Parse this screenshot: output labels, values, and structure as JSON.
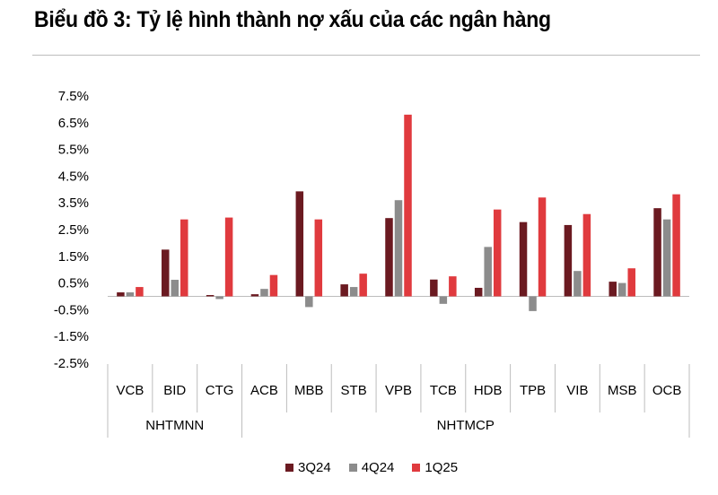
{
  "title": "Biểu đồ 3: Tỷ lệ hình thành nợ xấu của các ngân hàng",
  "colors": {
    "3Q24": "#6b1a21",
    "4Q24": "#8c8c8c",
    "1Q25": "#e03a3e"
  },
  "chart_data": {
    "type": "bar",
    "ylim": [
      -2.5,
      7.5
    ],
    "yticks": [
      "7.5%",
      "6.5%",
      "5.5%",
      "4.5%",
      "3.5%",
      "2.5%",
      "1.5%",
      "0.5%",
      "-0.5%",
      "-1.5%",
      "-2.5%"
    ],
    "grid": false,
    "legend_position": "bottom",
    "categories": [
      "VCB",
      "BID",
      "CTG",
      "ACB",
      "MBB",
      "STB",
      "VPB",
      "TCB",
      "HDB",
      "TPB",
      "VIB",
      "MSB",
      "OCB"
    ],
    "groups": [
      {
        "label": "NHTMNN",
        "categories": [
          "VCB",
          "BID",
          "CTG"
        ]
      },
      {
        "label": "NHTMCP",
        "categories": [
          "ACB",
          "MBB",
          "STB",
          "VPB",
          "TCB",
          "HDB",
          "TPB",
          "VIB",
          "MSB",
          "OCB"
        ]
      }
    ],
    "series": [
      {
        "name": "3Q24",
        "values": [
          0.15,
          1.75,
          0.05,
          0.08,
          3.93,
          0.45,
          2.93,
          0.63,
          0.32,
          2.78,
          2.67,
          0.55,
          3.3
        ]
      },
      {
        "name": "4Q24",
        "values": [
          0.15,
          0.62,
          -0.1,
          0.28,
          -0.4,
          0.35,
          3.6,
          -0.28,
          1.85,
          -0.55,
          0.95,
          0.5,
          2.88
        ]
      },
      {
        "name": "1Q25",
        "values": [
          0.35,
          2.88,
          2.95,
          0.8,
          2.88,
          0.85,
          6.8,
          0.75,
          3.25,
          3.7,
          3.08,
          1.05,
          3.82
        ]
      }
    ]
  }
}
